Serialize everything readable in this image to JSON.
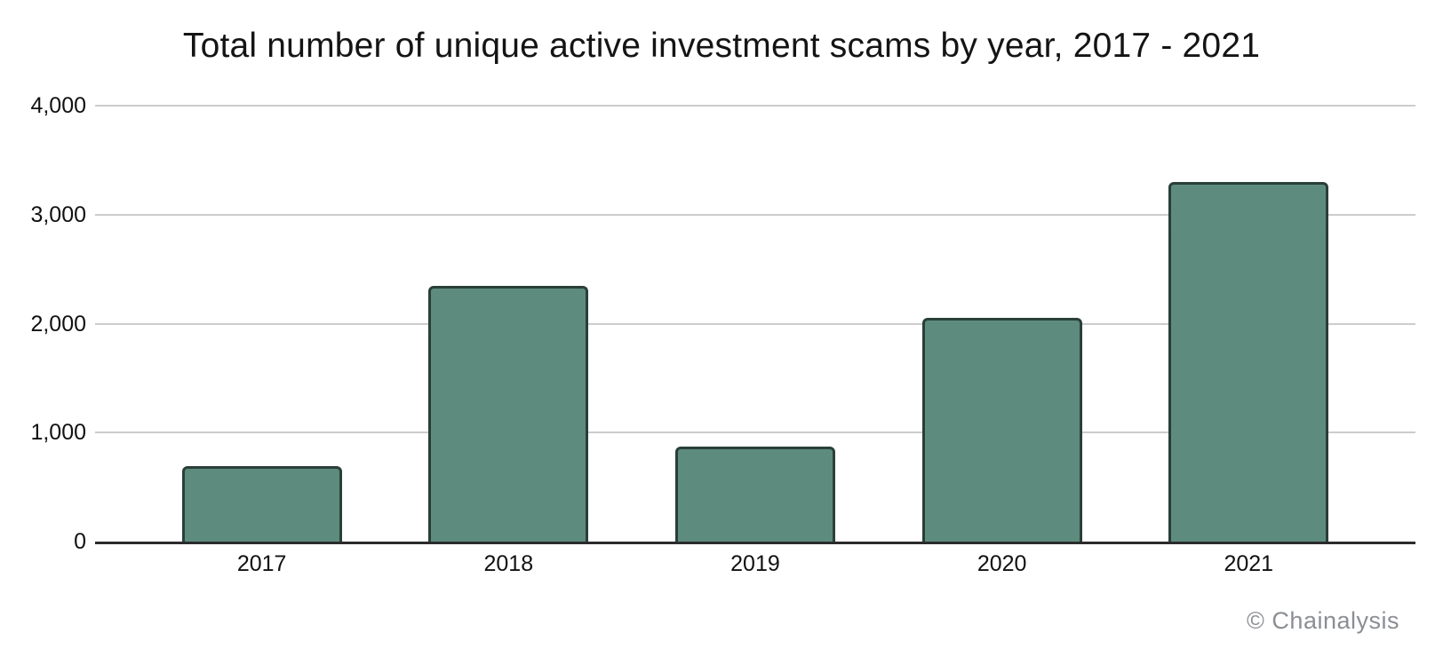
{
  "chart_data": {
    "type": "bar",
    "title": "Total number of unique active investment scams by year, 2017 - 2021",
    "categories": [
      "2017",
      "2018",
      "2019",
      "2020",
      "2021"
    ],
    "values": [
      690,
      2350,
      870,
      2050,
      3300
    ],
    "xlabel": "",
    "ylabel": "",
    "ylim": [
      0,
      4000
    ],
    "yticks": [
      0,
      1000,
      2000,
      3000,
      4000
    ],
    "ytick_labels": [
      "0",
      "1,000",
      "2,000",
      "3,000",
      "4,000"
    ],
    "grid": true,
    "legend": false,
    "colors": {
      "bar_fill": "#5d8c7e",
      "bar_border": "rgba(0,0,0,0.55)",
      "gridline": "#cccccc",
      "axis_line": "#2b2b2b",
      "text": "#111111"
    }
  },
  "watermark": {
    "label": "© Chainalysis",
    "color": "#8b8e93"
  }
}
